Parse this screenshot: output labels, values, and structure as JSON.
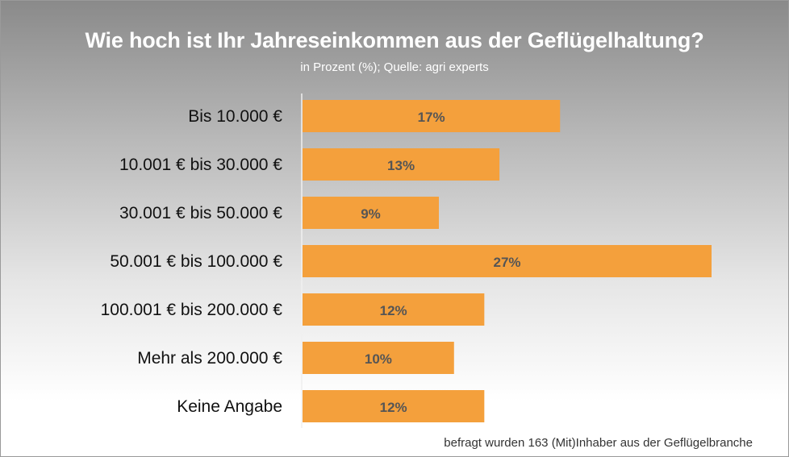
{
  "title": "Wie hoch ist Ihr Jahreseinkommen aus der Geflügelhaltung?",
  "subtitle": "in Prozent (%); Quelle: agri experts",
  "footnote": "befragt wurden 163 (Mit)Inhaber aus der Geflügelbranche",
  "colors": {
    "bar": "#f4a03c",
    "bar_label": "#555555",
    "category_label": "#111111",
    "axis": "#f0f0f0"
  },
  "chart_data": {
    "type": "bar",
    "orientation": "horizontal",
    "title": "Wie hoch ist Ihr Jahreseinkommen aus der Geflügelhaltung?",
    "subtitle": "in Prozent (%); Quelle: agri experts",
    "categories": [
      "Bis 10.000 €",
      "10.001 € bis 30.000 €",
      "30.001 € bis 50.000 €",
      "50.001 € bis 100.000 €",
      "100.001 € bis 200.000 €",
      "Mehr als 200.000 €",
      "Keine Angabe"
    ],
    "values": [
      17,
      13,
      9,
      27,
      12,
      10,
      12
    ],
    "value_labels": [
      "17%",
      "13%",
      "9%",
      "27%",
      "12%",
      "10%",
      "12%"
    ],
    "xlim": [
      0,
      27
    ],
    "grid": false,
    "legend": "none"
  }
}
